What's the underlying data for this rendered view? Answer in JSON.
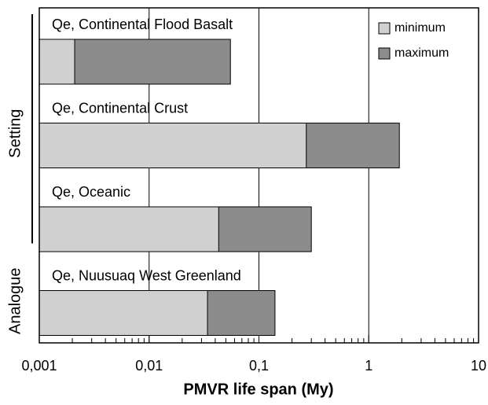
{
  "chart_data": {
    "type": "range-bar",
    "xlabel": "PMVR life span (My)",
    "categories": [
      "Qe, Continental Flood Basalt",
      "Qe, Continental Crust",
      "Qe, Oceanic",
      "Qe, Nuusuaq West Greenland"
    ],
    "category_groups": [
      "Setting",
      "Setting",
      "Setting",
      "Analogue"
    ],
    "series": [
      {
        "name": "minimum",
        "color": "#d0d0d0",
        "values": [
          0.0021,
          0.27,
          0.043,
          0.034
        ]
      },
      {
        "name": "maximum",
        "color": "#8c8c8c",
        "values": [
          0.055,
          1.9,
          0.3,
          0.14
        ]
      }
    ],
    "xscale": "log",
    "xlim": [
      0.001,
      10
    ],
    "xticks": [
      {
        "value": 0.001,
        "label": "0,001"
      },
      {
        "value": 0.01,
        "label": "0,01"
      },
      {
        "value": 0.1,
        "label": "0,1"
      },
      1,
      10
    ],
    "grid": true,
    "minor_ticks": true,
    "legend": "upper right"
  }
}
